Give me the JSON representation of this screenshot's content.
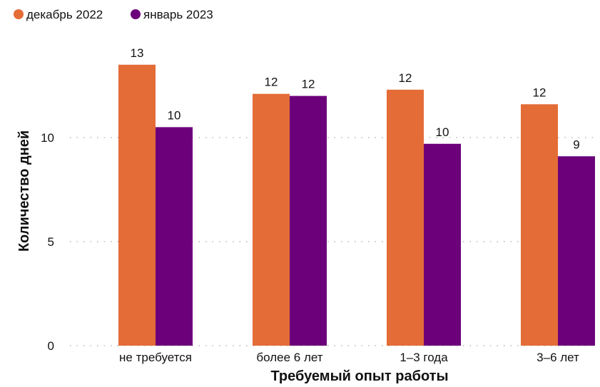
{
  "chart_data": {
    "type": "bar",
    "title": "",
    "xlabel": "Требуемый опыт работы",
    "ylabel": "Количество дней",
    "categories": [
      "не требуется",
      "более 6 лет",
      "1–3 года",
      "3–6 лет"
    ],
    "series": [
      {
        "name": "декабрь 2022",
        "color": "#E46C37",
        "values": [
          13.5,
          12.1,
          12.3,
          11.6
        ],
        "labels": [
          "13",
          "12",
          "12",
          "12"
        ]
      },
      {
        "name": "январь 2023",
        "color": "#6C007A",
        "values": [
          10.5,
          12.0,
          9.7,
          9.1
        ],
        "labels": [
          "10",
          "12",
          "10",
          "9"
        ]
      }
    ],
    "yticks": [
      0,
      5,
      10
    ],
    "ylim": [
      0,
      14
    ],
    "grid": true,
    "legend_position": "top-left"
  }
}
